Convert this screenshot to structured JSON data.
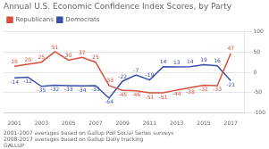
{
  "chart_data": {
    "type": "line",
    "title": "Annual U.S. Economic Confidence Index Scores, by Party",
    "annotations": [
      "2001-2007 averages based on Gallup Poll Social Series surveys",
      "2008-2017 averages based on Gallup Daily tracking",
      "GALLUP"
    ],
    "x": [
      2001,
      2002,
      2003,
      2004,
      2005,
      2006,
      2007,
      2008,
      2009,
      2010,
      2011,
      2012,
      2013,
      2014,
      2015,
      2016,
      2017
    ],
    "series": [
      {
        "name": "Republicans",
        "color": "#d94f3d",
        "values": [
          15,
          20,
          25,
          51,
          30,
          37,
          25,
          -33,
          -45,
          -46,
          -51,
          -51,
          -44,
          -38,
          -32,
          -33,
          47
        ]
      },
      {
        "name": "Democrats",
        "color": "#3a4fad",
        "values": [
          -14,
          -12,
          -35,
          -32,
          -33,
          -34,
          -33,
          -64,
          -22,
          -7,
          -19,
          14,
          13,
          14,
          19,
          16,
          -21
        ]
      }
    ],
    "xlim": [
      2000.2,
      2018.0
    ],
    "xticks": [
      2001,
      2003,
      2005,
      2007,
      2009,
      2011,
      2013,
      2015,
      2017
    ],
    "ylim": [
      -100,
      100
    ],
    "yticks": [
      -100,
      -50,
      0,
      50,
      100
    ],
    "grid": true,
    "legend": "upper left",
    "data_labels": true
  }
}
